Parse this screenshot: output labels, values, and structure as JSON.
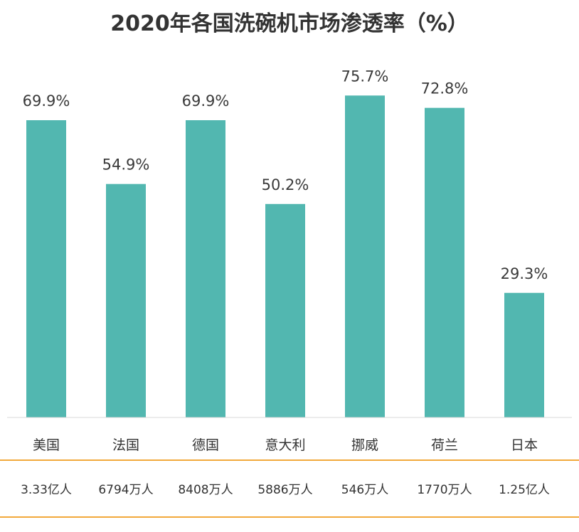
{
  "title": "2020年各国洗碗机市场渗透率（%）",
  "colors": {
    "bar": "#52b7b0",
    "divider": "#f2a93b"
  },
  "chart_data": {
    "type": "bar",
    "title": "2020年各国洗碗机市场渗透率（%）",
    "categories": [
      "美国",
      "法国",
      "德国",
      "意大利",
      "挪威",
      "荷兰",
      "日本"
    ],
    "values": [
      69.9,
      54.9,
      69.9,
      50.2,
      75.7,
      72.8,
      29.3
    ],
    "value_labels": [
      "69.9%",
      "54.9%",
      "69.9%",
      "50.2%",
      "75.7%",
      "72.8%",
      "29.3%"
    ],
    "population": [
      "3.33亿人",
      "6794万人",
      "8408万人",
      "5886万人",
      "546万人",
      "1770万人",
      "1.25亿人"
    ],
    "ylim": [
      0,
      100
    ],
    "grid": false,
    "legend": "none"
  }
}
